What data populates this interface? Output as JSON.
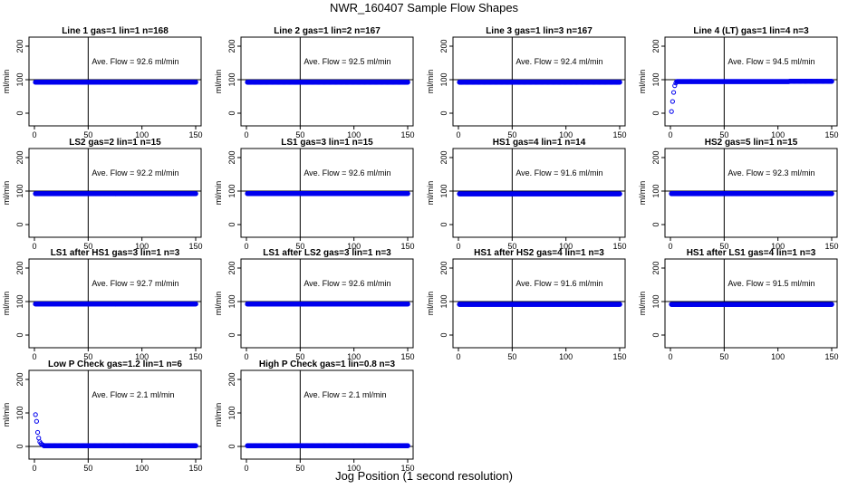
{
  "title": "NWR_160407  Sample Flow Shapes",
  "xlabel": "Jog Position (1 second resolution)",
  "ylabel": "ml/min",
  "colors": {
    "points": "#0000ee",
    "axis": "#000000",
    "background": "#ffffff"
  },
  "chart_data": [
    {
      "type": "scatter",
      "title": "Line 1 gas=1 lin=1 n=168",
      "annotation": "Ave. Flow = 92.6  ml/min",
      "xlim": [
        0,
        150
      ],
      "ylim": [
        0,
        200
      ],
      "xticks": [
        0,
        50,
        100,
        150
      ],
      "yticks": [
        0,
        100,
        200
      ],
      "vline": 50,
      "hline": 100,
      "shape": "flat",
      "level": 92.6
    },
    {
      "type": "scatter",
      "title": "Line 2 gas=1 lin=2 n=167",
      "annotation": "Ave. Flow = 92.5  ml/min",
      "xlim": [
        0,
        150
      ],
      "ylim": [
        0,
        200
      ],
      "xticks": [
        0,
        50,
        100,
        150
      ],
      "yticks": [
        0,
        100,
        200
      ],
      "vline": 50,
      "hline": 100,
      "shape": "flat",
      "level": 92.5
    },
    {
      "type": "scatter",
      "title": "Line 3 gas=1 lin=3 n=167",
      "annotation": "Ave. Flow = 92.4  ml/min",
      "xlim": [
        0,
        150
      ],
      "ylim": [
        0,
        200
      ],
      "xticks": [
        0,
        50,
        100,
        150
      ],
      "yticks": [
        0,
        100,
        200
      ],
      "vline": 50,
      "hline": 100,
      "shape": "flat",
      "level": 92.4
    },
    {
      "type": "scatter",
      "title": "Line 4 (LT) gas=1 lin=4 n=3",
      "annotation": "Ave. Flow = 94.5  ml/min",
      "xlim": [
        0,
        150
      ],
      "ylim": [
        0,
        200
      ],
      "xticks": [
        0,
        50,
        100,
        150
      ],
      "yticks": [
        0,
        100,
        200
      ],
      "vline": 50,
      "hline": 100,
      "shape": "rise",
      "level": 94.5,
      "early_points": [
        [
          1,
          5
        ],
        [
          2,
          35
        ],
        [
          3,
          62
        ],
        [
          4,
          82
        ],
        [
          5,
          90
        ]
      ]
    },
    {
      "type": "scatter",
      "title": "LS2 gas=2 lin=1 n=15",
      "annotation": "Ave. Flow = 92.2  ml/min",
      "xlim": [
        0,
        150
      ],
      "ylim": [
        0,
        200
      ],
      "xticks": [
        0,
        50,
        100,
        150
      ],
      "yticks": [
        0,
        100,
        200
      ],
      "vline": 50,
      "hline": 100,
      "shape": "flat",
      "level": 92.2
    },
    {
      "type": "scatter",
      "title": "LS1 gas=3 lin=1 n=15",
      "annotation": "Ave. Flow = 92.6  ml/min",
      "xlim": [
        0,
        150
      ],
      "ylim": [
        0,
        200
      ],
      "xticks": [
        0,
        50,
        100,
        150
      ],
      "yticks": [
        0,
        100,
        200
      ],
      "vline": 50,
      "hline": 100,
      "shape": "flat",
      "level": 92.6
    },
    {
      "type": "scatter",
      "title": "HS1 gas=4 lin=1 n=14",
      "annotation": "Ave. Flow = 91.6  ml/min",
      "xlim": [
        0,
        150
      ],
      "ylim": [
        0,
        200
      ],
      "xticks": [
        0,
        50,
        100,
        150
      ],
      "yticks": [
        0,
        100,
        200
      ],
      "vline": 50,
      "hline": 100,
      "shape": "flat",
      "level": 91.6
    },
    {
      "type": "scatter",
      "title": "HS2 gas=5 lin=1 n=15",
      "annotation": "Ave. Flow = 92.3  ml/min",
      "xlim": [
        0,
        150
      ],
      "ylim": [
        0,
        200
      ],
      "xticks": [
        0,
        50,
        100,
        150
      ],
      "yticks": [
        0,
        100,
        200
      ],
      "vline": 50,
      "hline": 100,
      "shape": "flat",
      "level": 92.3
    },
    {
      "type": "scatter",
      "title": "LS1 after HS1 gas=3 lin=1 n=3",
      "annotation": "Ave. Flow = 92.7  ml/min",
      "xlim": [
        0,
        150
      ],
      "ylim": [
        0,
        200
      ],
      "xticks": [
        0,
        50,
        100,
        150
      ],
      "yticks": [
        0,
        100,
        200
      ],
      "vline": 50,
      "hline": 100,
      "shape": "flat",
      "level": 92.7
    },
    {
      "type": "scatter",
      "title": "LS1 after LS2 gas=3 lin=1 n=3",
      "annotation": "Ave. Flow = 92.6  ml/min",
      "xlim": [
        0,
        150
      ],
      "ylim": [
        0,
        200
      ],
      "xticks": [
        0,
        50,
        100,
        150
      ],
      "yticks": [
        0,
        100,
        200
      ],
      "vline": 50,
      "hline": 100,
      "shape": "flat",
      "level": 92.6
    },
    {
      "type": "scatter",
      "title": "HS1 after HS2 gas=4 lin=1 n=3",
      "annotation": "Ave. Flow = 91.6  ml/min",
      "xlim": [
        0,
        150
      ],
      "ylim": [
        0,
        200
      ],
      "xticks": [
        0,
        50,
        100,
        150
      ],
      "yticks": [
        0,
        100,
        200
      ],
      "vline": 50,
      "hline": 100,
      "shape": "flat",
      "level": 91.6
    },
    {
      "type": "scatter",
      "title": "HS1 after LS1 gas=4 lin=1 n=3",
      "annotation": "Ave. Flow = 91.5  ml/min",
      "xlim": [
        0,
        150
      ],
      "ylim": [
        0,
        200
      ],
      "xticks": [
        0,
        50,
        100,
        150
      ],
      "yticks": [
        0,
        100,
        200
      ],
      "vline": 50,
      "hline": 100,
      "shape": "flat",
      "level": 91.5
    },
    {
      "type": "scatter",
      "title": "Low P Check gas=1.2 lin=1 n=6",
      "annotation": "Ave. Flow = 2.1  ml/min",
      "xlim": [
        0,
        150
      ],
      "ylim": [
        0,
        200
      ],
      "xticks": [
        0,
        50,
        100,
        150
      ],
      "yticks": [
        0,
        100,
        200
      ],
      "vline": 50,
      "hline": 0,
      "shape": "decay",
      "level": 2.1,
      "early_points": [
        [
          1,
          95
        ],
        [
          2,
          75
        ],
        [
          3,
          42
        ],
        [
          4,
          25
        ],
        [
          5,
          14
        ],
        [
          6,
          9
        ],
        [
          7,
          6
        ],
        [
          8,
          4
        ]
      ]
    },
    {
      "type": "scatter",
      "title": "High P Check gas=1 lin=0.8 n=3",
      "annotation": "Ave. Flow = 2.1  ml/min",
      "xlim": [
        0,
        150
      ],
      "ylim": [
        0,
        200
      ],
      "xticks": [
        0,
        50,
        100,
        150
      ],
      "yticks": [
        0,
        100,
        200
      ],
      "vline": 50,
      "hline": 0,
      "shape": "flat",
      "level": 2.1
    }
  ]
}
